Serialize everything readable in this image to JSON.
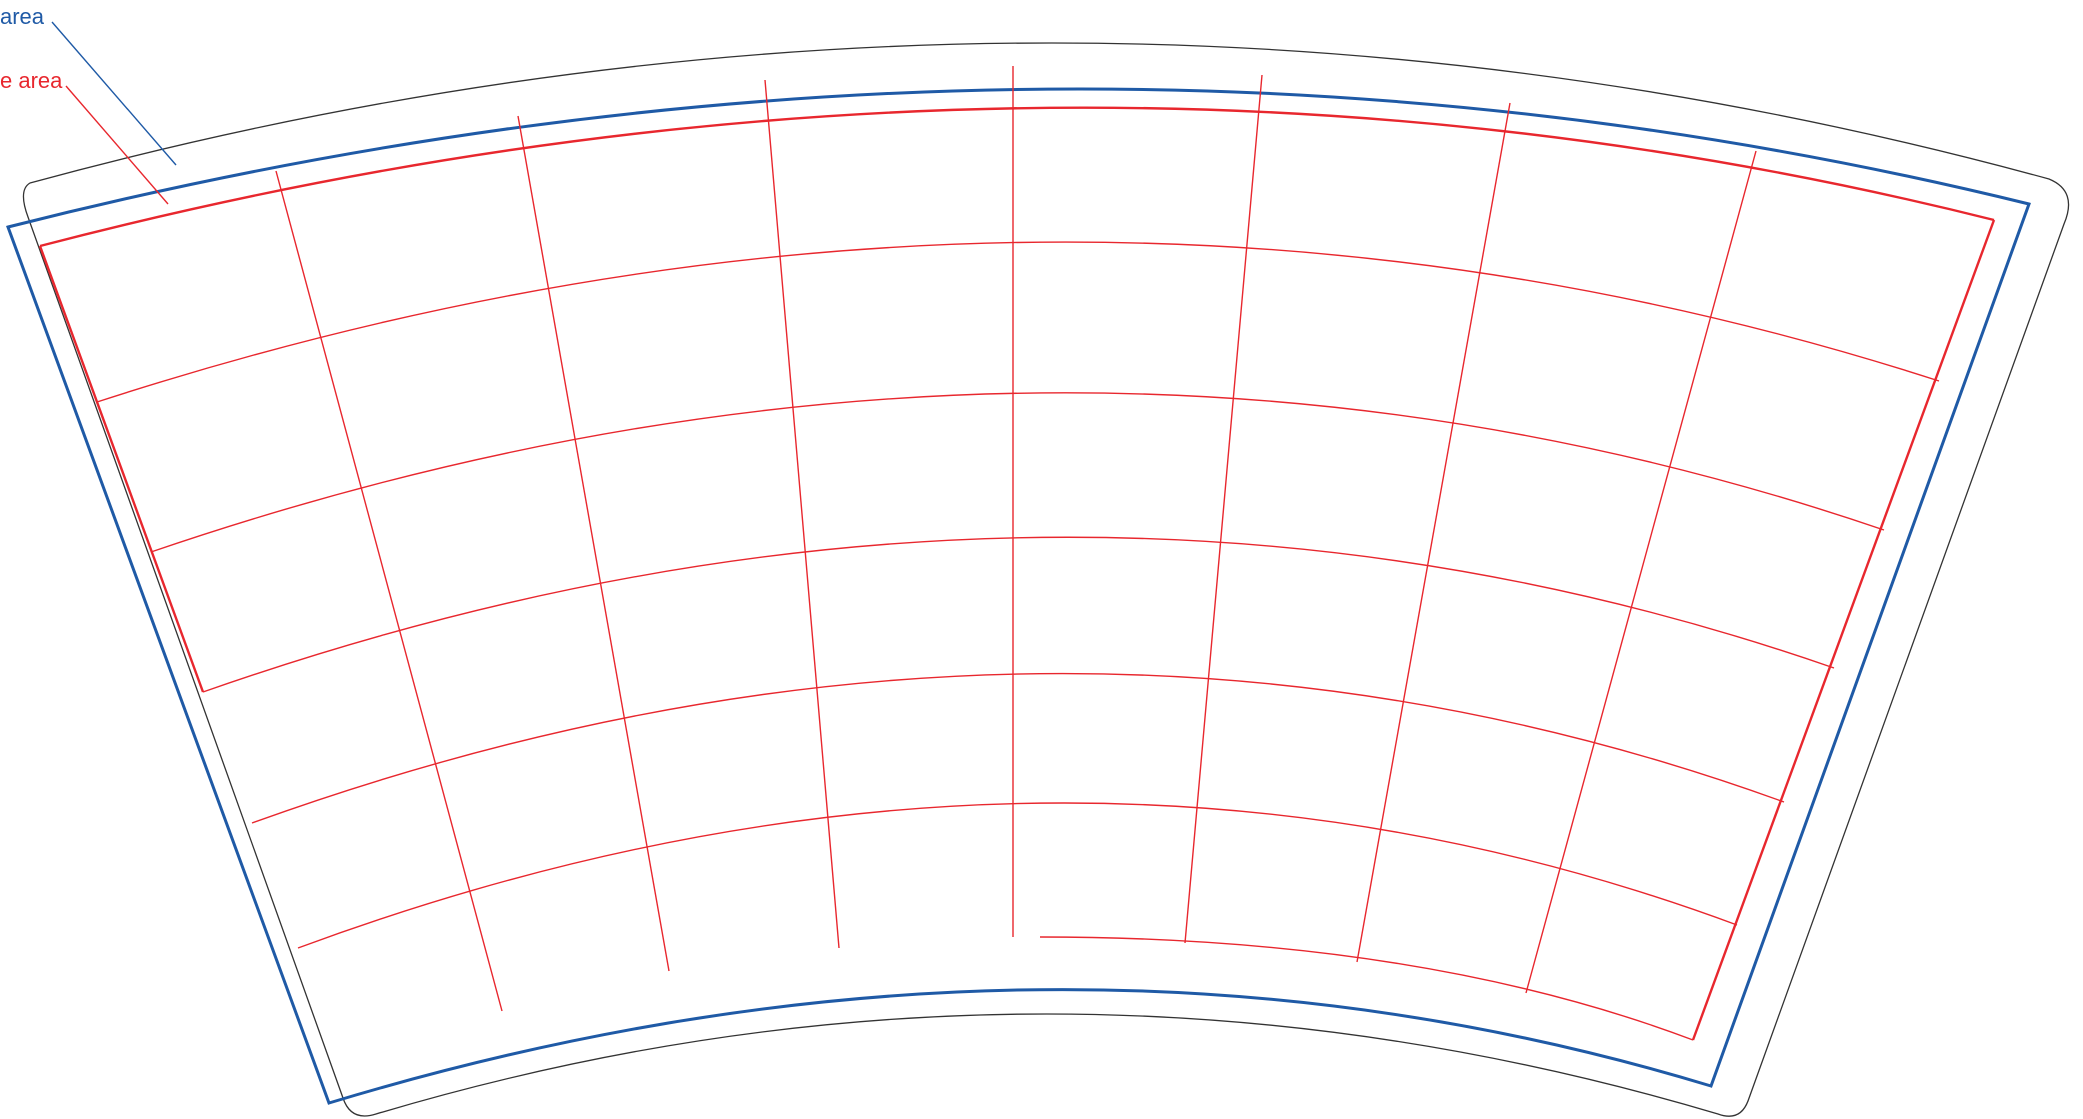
{
  "labels": {
    "bleed": "area",
    "safe": "e area"
  },
  "colors": {
    "bleed": "#1f5aa6",
    "safe": "#e8272e",
    "trim": "#333333",
    "background": "#ffffff"
  }
}
